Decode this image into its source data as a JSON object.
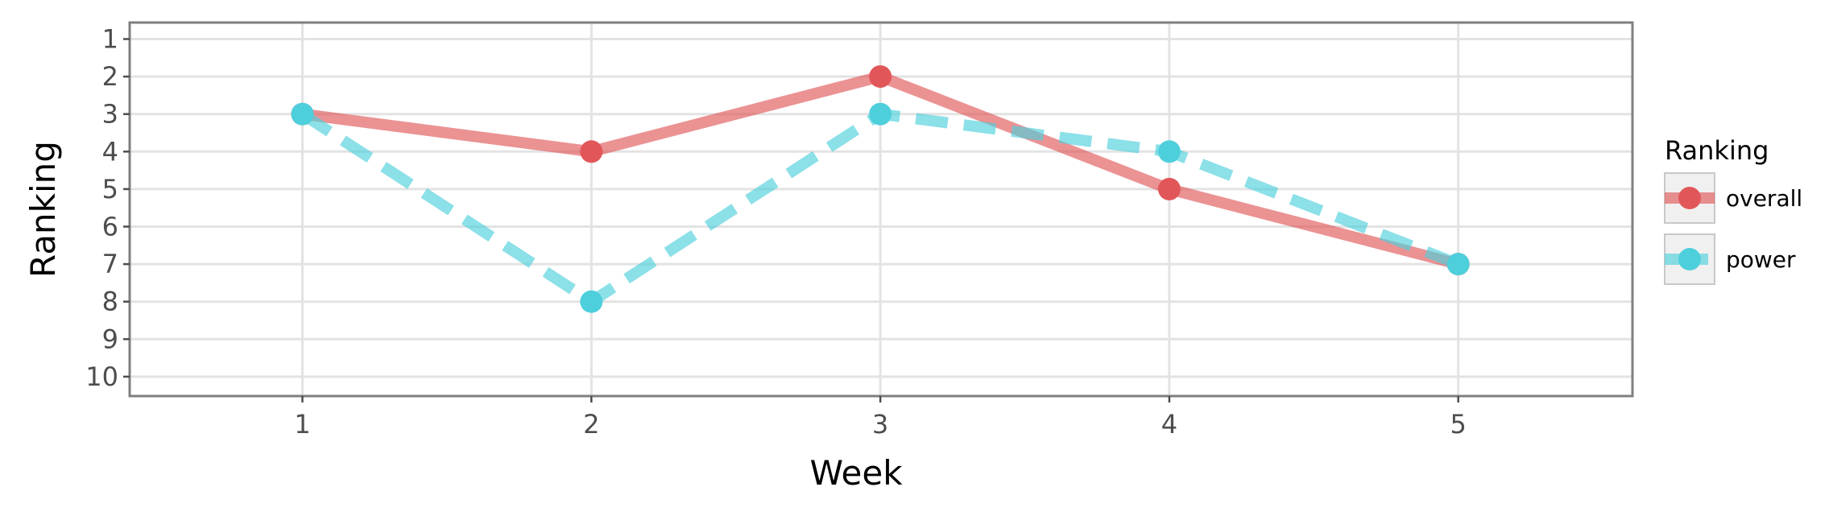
{
  "chart_data": {
    "type": "line",
    "xlabel": "Week",
    "ylabel": "Ranking",
    "x": [
      1,
      2,
      3,
      4,
      5
    ],
    "x_ticks": [
      "1",
      "2",
      "3",
      "4",
      "5"
    ],
    "xlim": [
      0.4,
      5.6
    ],
    "y_ticks": [
      "1",
      "2",
      "3",
      "4",
      "5",
      "6",
      "7",
      "8",
      "9",
      "10"
    ],
    "ylim": [
      1,
      10
    ],
    "y_reversed": true,
    "grid": true,
    "legend": {
      "title": "Ranking",
      "position": "right"
    },
    "series": [
      {
        "name": "overall",
        "values": [
          3,
          4,
          2,
          5,
          7
        ],
        "color": "#e15759",
        "line_style": "solid"
      },
      {
        "name": "power",
        "values": [
          3,
          8,
          3,
          4,
          7
        ],
        "color": "#4ecfdc",
        "line_style": "dashed"
      }
    ]
  }
}
